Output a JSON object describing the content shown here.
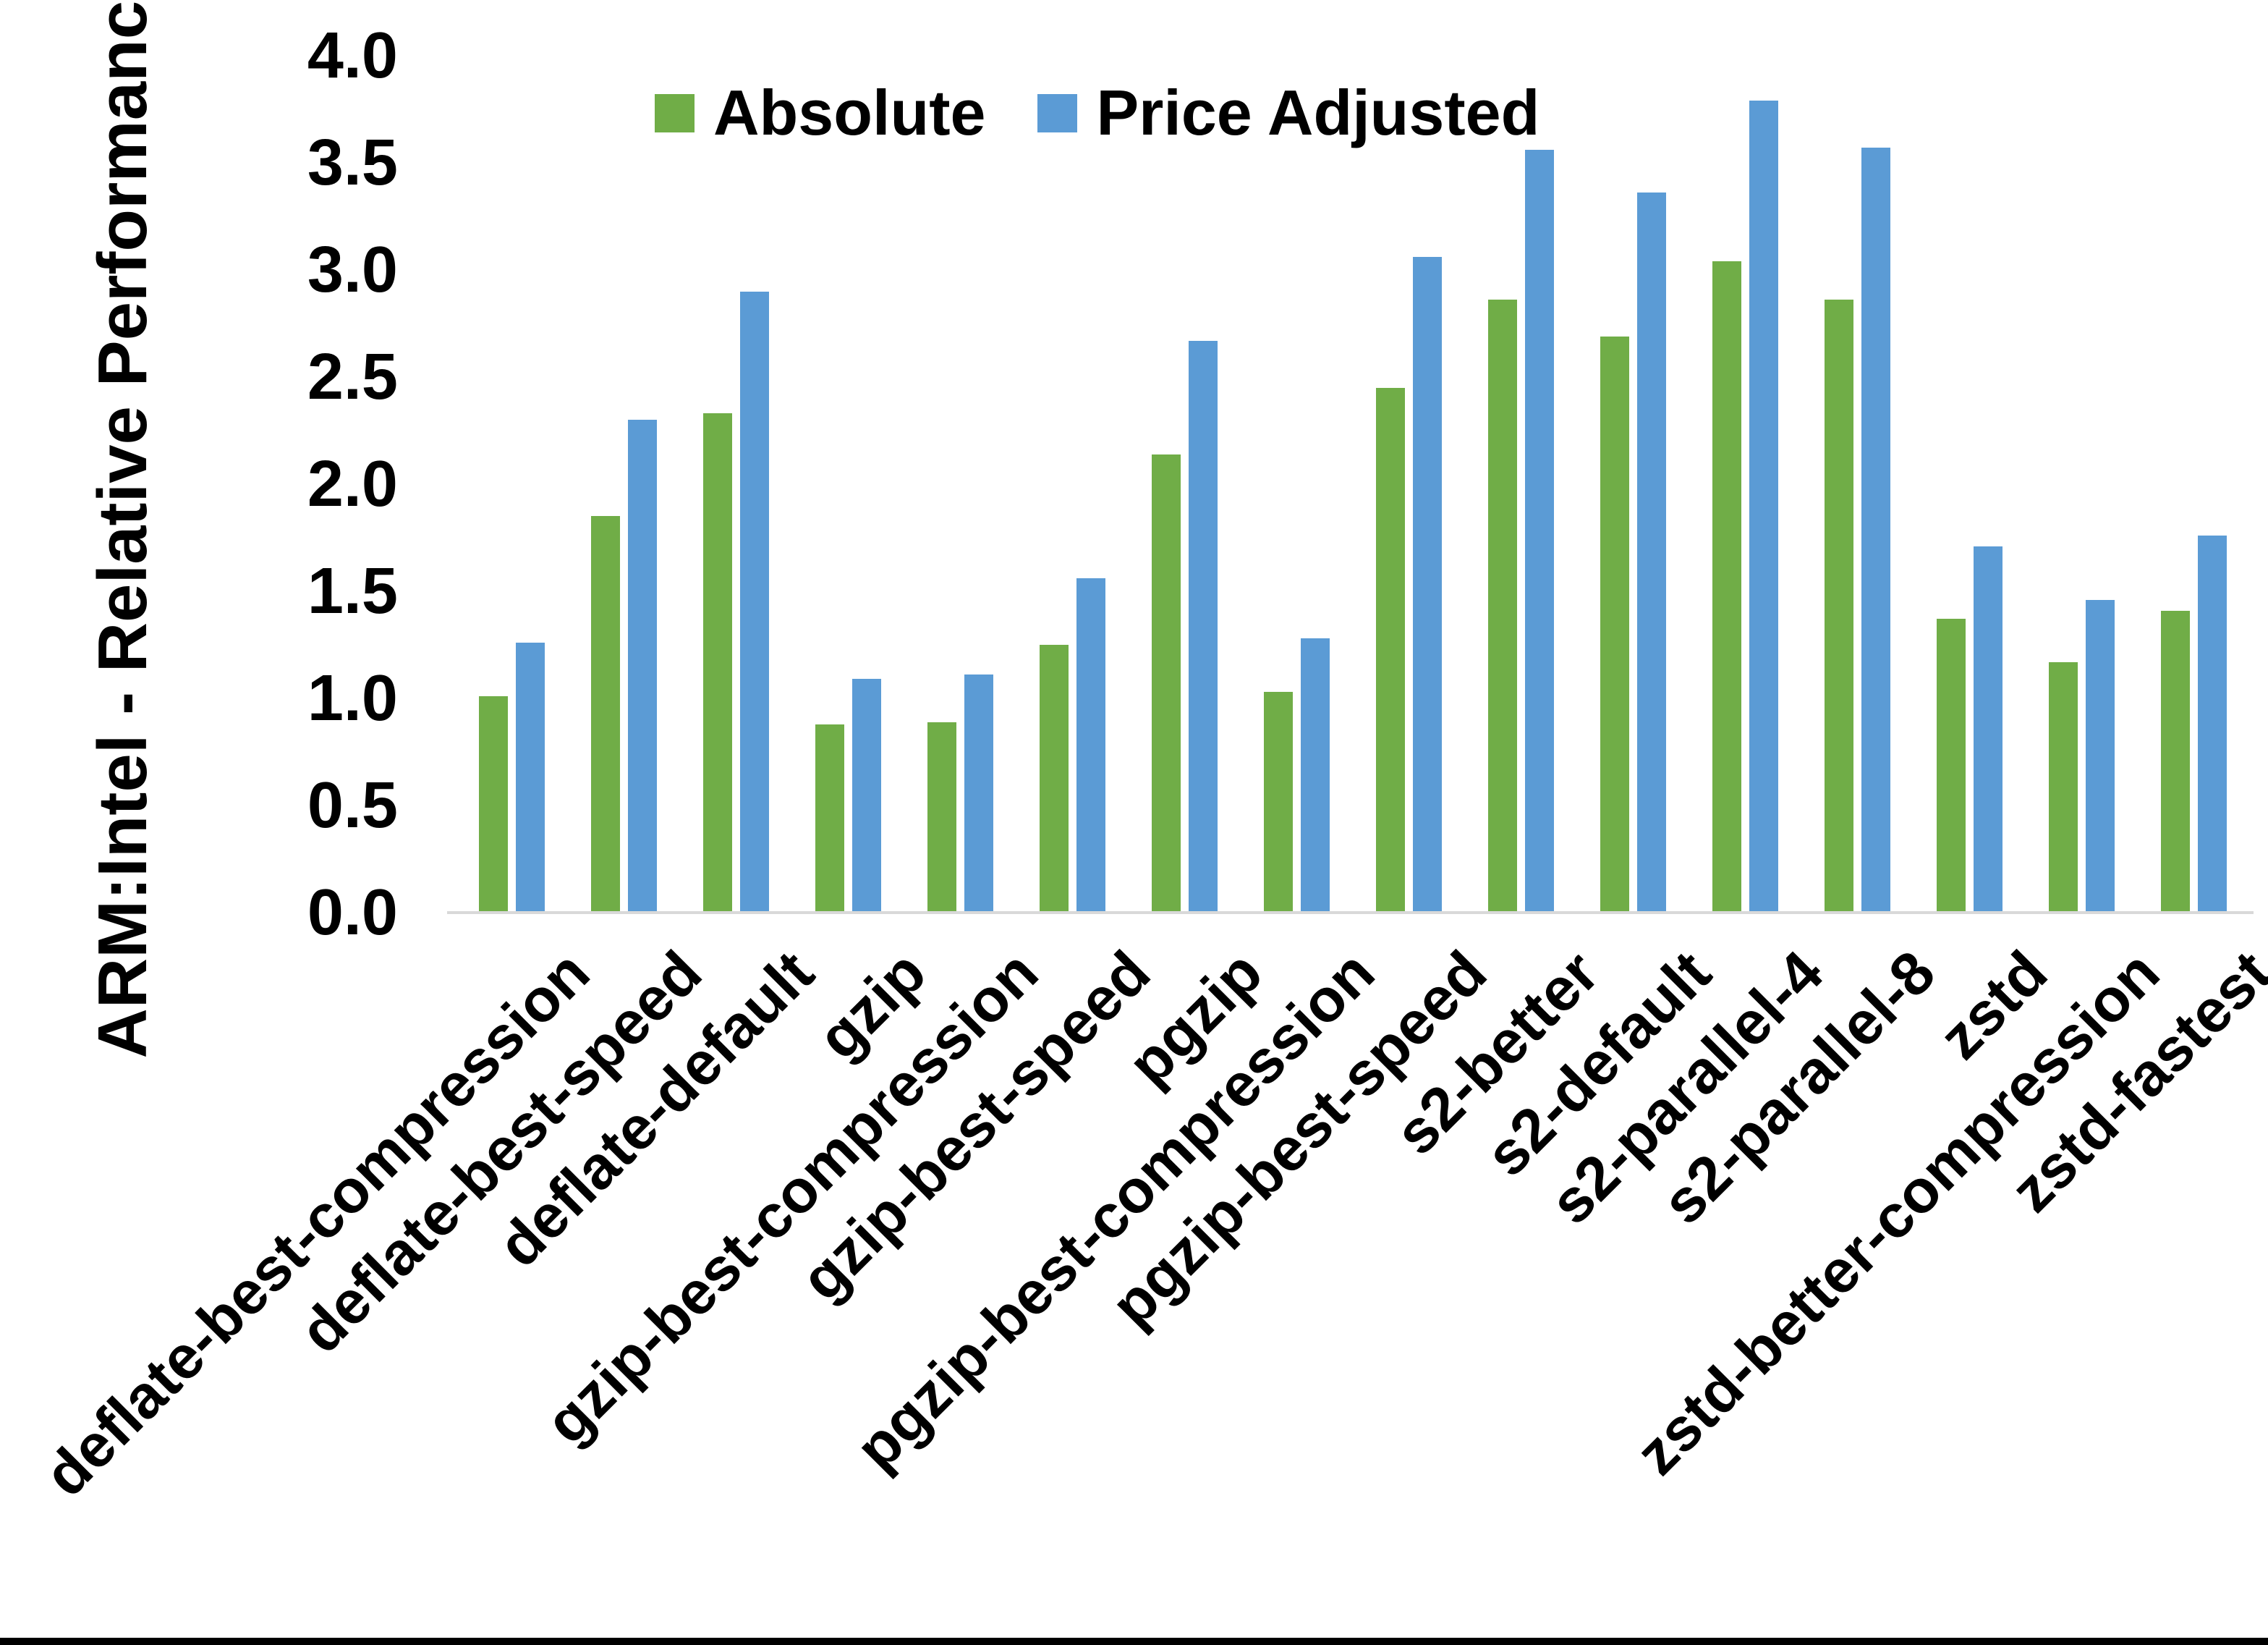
{
  "chart_data": {
    "type": "bar",
    "title": "",
    "xlabel": "",
    "ylabel": "ARM:Intel - Relative Performance",
    "ylim": [
      0.0,
      4.0
    ],
    "ytick_step": 0.5,
    "ytick_labels": [
      "0.0",
      "0.5",
      "1.0",
      "1.5",
      "2.0",
      "2.5",
      "3.0",
      "3.5",
      "4.0"
    ],
    "grid": false,
    "legend_position": "top-center",
    "categories": [
      "deflate-best-compression",
      "deflate-best-speed",
      "deflate-default",
      "gzip",
      "gzip-best-compression",
      "gzip-best-speed",
      "pgzip",
      "pgzip-best-compression",
      "pgzip-best-speed",
      "s2-better",
      "s2-default",
      "s2-parallel-4",
      "s2-parallel-8",
      "zstd",
      "zstd-better-compression",
      "zstd-fastest"
    ],
    "series": [
      {
        "name": "Absolute",
        "color": "#70AD47",
        "values": [
          1.01,
          1.85,
          2.33,
          0.88,
          0.89,
          1.25,
          2.14,
          1.03,
          2.45,
          2.86,
          2.69,
          3.04,
          2.86,
          1.37,
          1.17,
          1.41
        ]
      },
      {
        "name": "Price Adjusted",
        "color": "#5B9BD5",
        "values": [
          1.26,
          2.3,
          2.9,
          1.09,
          1.11,
          1.56,
          2.67,
          1.28,
          3.06,
          3.56,
          3.36,
          3.79,
          3.57,
          1.71,
          1.46,
          1.76
        ]
      }
    ],
    "colors": {
      "axis_line": "#D9D9D9",
      "text": "#000000",
      "background": "#FFFFFF",
      "bottom_border": "#000000"
    }
  }
}
